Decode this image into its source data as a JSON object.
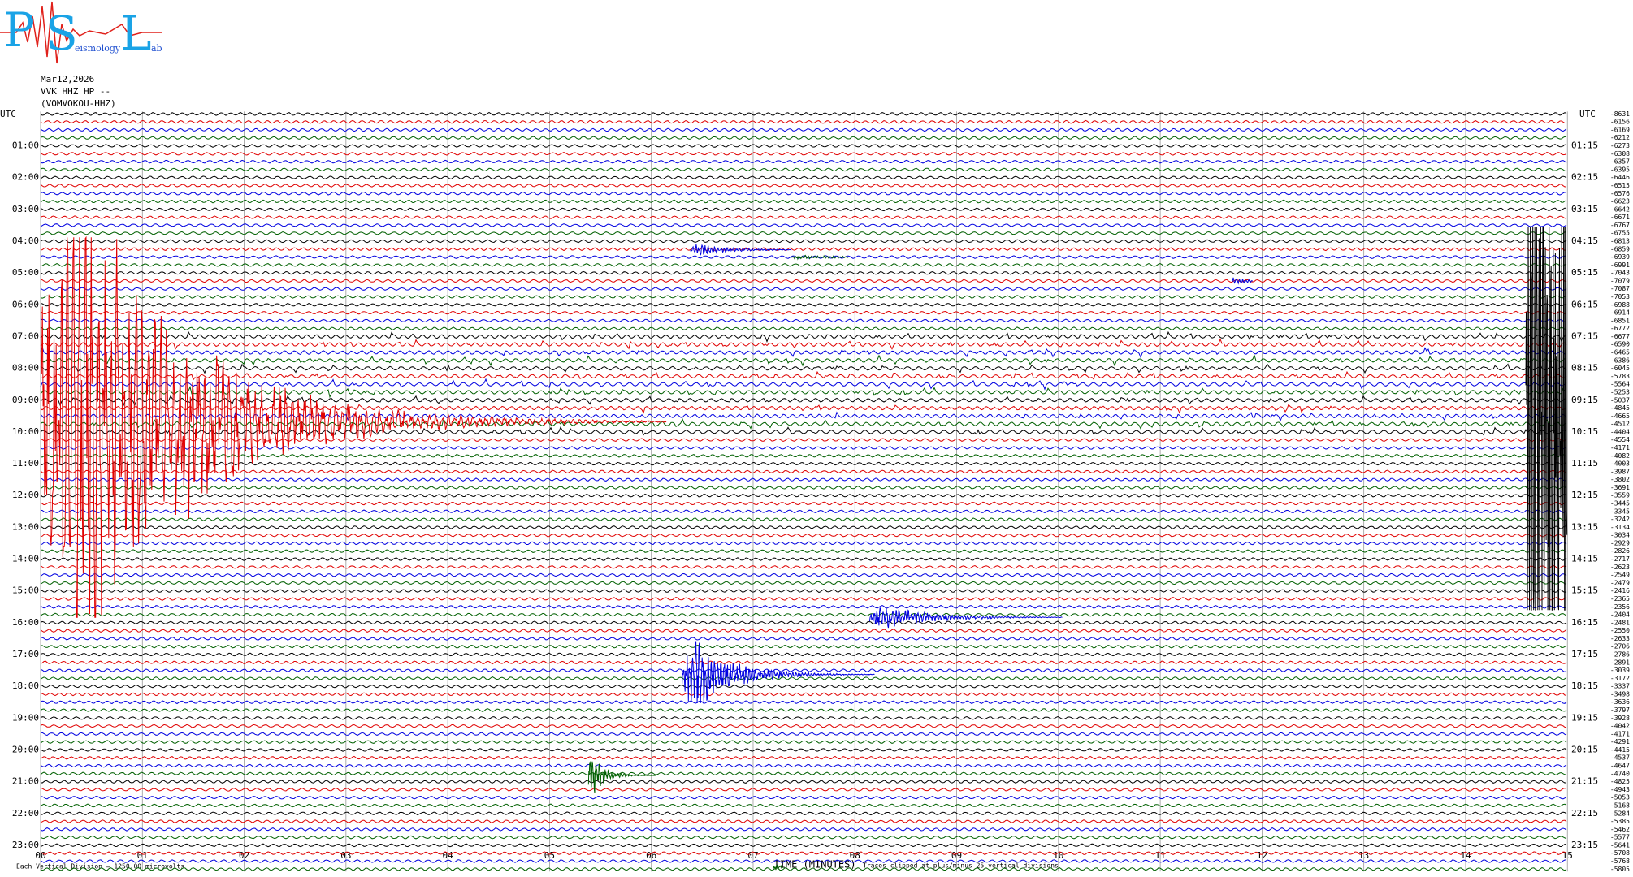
{
  "logo": {
    "letters": [
      "P",
      "S",
      "L"
    ],
    "subtexts": [
      "eismology",
      "ab"
    ]
  },
  "header": {
    "date": "Mar12,2026",
    "station": "VVK HHZ HP --",
    "channel": "(VOMVOKOU-HHZ)"
  },
  "left_label": "UTC",
  "right_label": "UTC",
  "hour_labels": [
    "01:00",
    "02:00",
    "03:00",
    "04:00",
    "05:00",
    "06:00",
    "07:00",
    "08:00",
    "09:00",
    "10:00",
    "11:00",
    "12:00",
    "13:00",
    "14:00",
    "15:00",
    "16:00",
    "17:00",
    "18:00",
    "19:00",
    "20:00",
    "21:00",
    "22:00",
    "23:00"
  ],
  "quarter_labels": [
    "01:15",
    "02:15",
    "03:15",
    "04:15",
    "05:15",
    "06:15",
    "07:15",
    "08:15",
    "09:15",
    "10:15",
    "11:15",
    "12:15",
    "13:15",
    "14:15",
    "15:15",
    "16:15",
    "17:15",
    "18:15",
    "19:15",
    "20:15",
    "21:15",
    "22:15",
    "23:15"
  ],
  "offsets": [
    -8631,
    -6156,
    -6169,
    -6212,
    -6273,
    -6308,
    -6357,
    -6395,
    -6446,
    -6515,
    -6576,
    -6623,
    -6642,
    -6671,
    -6767,
    -6755,
    -6813,
    -6859,
    -6939,
    -6991,
    -7043,
    -7079,
    -7087,
    -7053,
    -6988,
    -6914,
    -6851,
    -6772,
    -6677,
    -6590,
    -6465,
    -6386,
    -6045,
    -5783,
    -5564,
    -5253,
    -5037,
    -4845,
    -4665,
    -4512,
    -4404,
    -4554,
    -4171,
    -4082,
    -4003,
    -3987,
    -3802,
    -3691,
    -3559,
    -3445,
    -3345,
    -3242,
    -3134,
    -3034,
    -2929,
    -2826,
    -2717,
    -2623,
    -2549,
    -2479,
    -2416,
    -2365,
    -2356,
    -2404,
    -2481,
    -2550,
    -2633,
    -2706,
    -2786,
    -2891,
    -3039,
    -3172,
    -3337,
    -3498,
    -3636,
    -3797,
    -3928,
    -4042,
    -4171,
    -4291,
    -4415,
    -4537,
    -4647,
    -4740,
    -4825,
    -4943,
    -5053,
    -5168,
    -5284,
    -5385,
    -5462,
    -5577,
    -5641,
    -5708,
    -5768,
    -5805
  ],
  "x_labels": [
    "00",
    "01",
    "02",
    "03",
    "04",
    "05",
    "06",
    "07",
    "08",
    "09",
    "10",
    "11",
    "12",
    "13",
    "14",
    "15"
  ],
  "x_title": "TIME (MINUTES)",
  "clip_note": "Traces clipped at plus/minus 25 vertical divisions",
  "scale_note": "Each Vertical Division = 1250.00 microvolts"
}
